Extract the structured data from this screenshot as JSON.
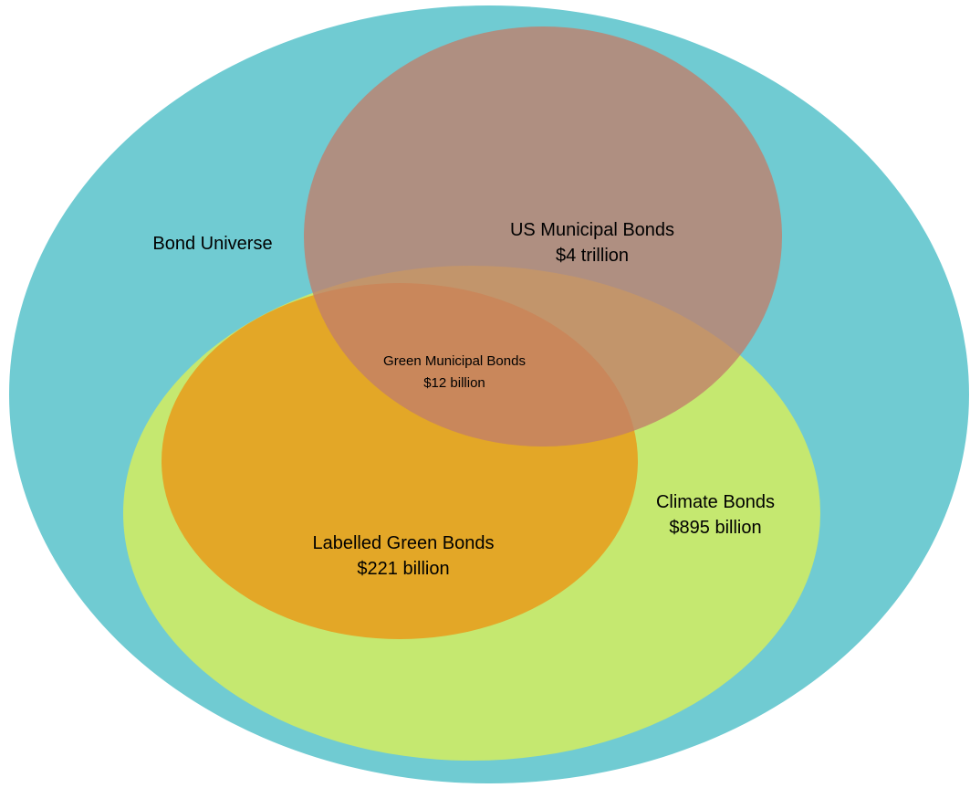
{
  "colors": {
    "background": "#ffffff",
    "bond_universe": "#70cbd2",
    "climate_bonds": "#c5e870",
    "labelled_green_bonds": "#e3a727",
    "us_municipal_bonds": "#c17d6a",
    "text": "#000000"
  },
  "sets": {
    "bond_universe": {
      "name": "Bond Universe"
    },
    "us_municipal_bonds": {
      "name": "US Municipal Bonds",
      "value": "$4 trillion"
    },
    "climate_bonds": {
      "name": "Climate Bonds",
      "value": "$895 billion"
    },
    "labelled_green_bonds": {
      "name": "Labelled Green Bonds",
      "value": "$221 billion"
    },
    "green_municipal_bonds": {
      "name": "Green Municipal Bonds",
      "value": "$12 billion"
    }
  }
}
